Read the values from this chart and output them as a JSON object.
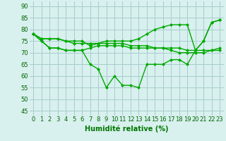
{
  "x": [
    0,
    1,
    2,
    3,
    4,
    5,
    6,
    7,
    8,
    9,
    10,
    11,
    12,
    13,
    14,
    15,
    16,
    17,
    18,
    19,
    20,
    21,
    22,
    23
  ],
  "series": [
    [
      78,
      76,
      76,
      76,
      75,
      75,
      75,
      73,
      74,
      75,
      75,
      75,
      75,
      76,
      78,
      80,
      81,
      82,
      82,
      82,
      71,
      75,
      83,
      84
    ],
    [
      78,
      75,
      72,
      72,
      71,
      71,
      71,
      72,
      73,
      73,
      73,
      73,
      72,
      72,
      72,
      72,
      72,
      72,
      72,
      71,
      71,
      71,
      71,
      71
    ],
    [
      78,
      75,
      72,
      72,
      71,
      71,
      71,
      65,
      63,
      55,
      60,
      56,
      56,
      55,
      65,
      65,
      65,
      67,
      67,
      65,
      71,
      75,
      83,
      84
    ],
    [
      78,
      76,
      76,
      76,
      75,
      74,
      74,
      74,
      74,
      74,
      74,
      74,
      73,
      73,
      73,
      72,
      72,
      71,
      70,
      70,
      70,
      70,
      71,
      72
    ]
  ],
  "line_color": "#00aa00",
  "marker": "D",
  "marker_size": 2,
  "line_width": 1.0,
  "background_color": "#d8f0ee",
  "grid_color": "#a8cccc",
  "xlabel": "Humidité relative (%)",
  "xlabel_color": "#007700",
  "xlabel_fontsize": 7,
  "tick_color": "#006600",
  "tick_fontsize": 6,
  "yticks": [
    45,
    50,
    55,
    60,
    65,
    70,
    75,
    80,
    85,
    90
  ],
  "ylim": [
    43,
    92
  ],
  "xlim": [
    -0.5,
    23.5
  ]
}
